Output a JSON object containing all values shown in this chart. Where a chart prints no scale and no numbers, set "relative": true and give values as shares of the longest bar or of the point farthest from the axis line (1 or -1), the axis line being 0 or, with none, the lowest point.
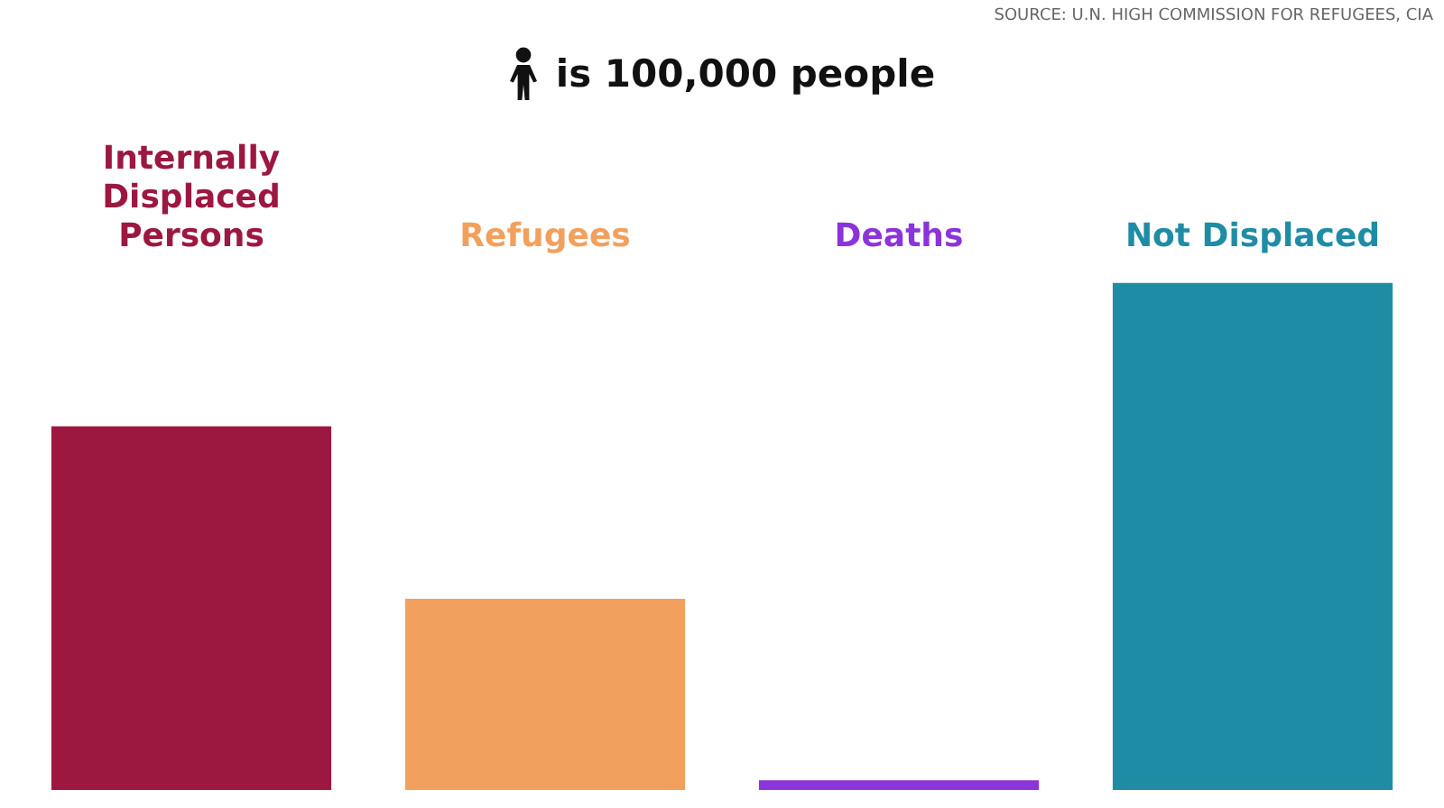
{
  "chart_data": {
    "type": "bar",
    "categories": [
      "Internally Displaced Persons",
      "Refugees",
      "Deaths",
      "Not Displaced"
    ],
    "values": [
      0.717,
      0.377,
      0.019,
      1
    ],
    "colors": [
      "#9c1840",
      "#f2a05e",
      "#8b34d9",
      "#1f8ca6"
    ],
    "relative": true,
    "annotations": [
      "is 100,000 people",
      "SOURCE: U.N. HIGH COMMISSION FOR REFUGEES, CIA"
    ]
  }
}
